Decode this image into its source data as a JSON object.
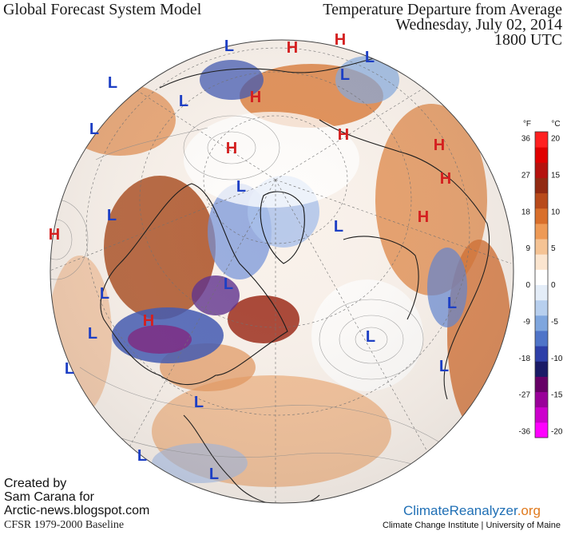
{
  "header": {
    "title_left": "Global Forecast System Model",
    "title_right": "Temperature Departure from Average",
    "date": "Wednesday, July 02, 2014",
    "time": "1800 UTC"
  },
  "credits": {
    "line1": "Created by",
    "line2": "Sam Carana for",
    "line3": "Arctic-news.blogspot.com",
    "baseline": "CFSR 1979-2000 Baseline"
  },
  "brand": {
    "name_part1": "ClimateReanalyzer",
    "name_part2": ".org",
    "institute": "Climate Change Institute | University of Maine"
  },
  "legend": {
    "unit_f": "°F",
    "unit_c": "°C",
    "ticks": [
      {
        "f": "36",
        "c": "20"
      },
      {
        "f": "27",
        "c": "15"
      },
      {
        "f": "18",
        "c": "10"
      },
      {
        "f": "9",
        "c": "5"
      },
      {
        "f": "0",
        "c": "0"
      },
      {
        "f": "-9",
        "c": "-5"
      },
      {
        "f": "-18",
        "c": "-10"
      },
      {
        "f": "-27",
        "c": "-15"
      },
      {
        "f": "-36",
        "c": "-20"
      }
    ],
    "colors": [
      "#ff00ff",
      "#cc00cc",
      "#990099",
      "#660066",
      "#1a1a66",
      "#2e3fa8",
      "#4f74c8",
      "#7fa6de",
      "#b7cfee",
      "#e4edf8",
      "#ffffff",
      "#fbe5cf",
      "#f5c394",
      "#ee9a56",
      "#d96f2b",
      "#b84a1a",
      "#922a12",
      "#b5120e",
      "#e00000",
      "#ff2020"
    ]
  },
  "colors": {
    "high": "#d42020",
    "low": "#1d3fc4",
    "warm": "#e08a4a",
    "cold": "#5a7fd0"
  },
  "pressure_systems": [
    {
      "label": "H",
      "kind": "high"
    },
    {
      "label": "H",
      "kind": "high"
    },
    {
      "label": "H",
      "kind": "high"
    },
    {
      "label": "H",
      "kind": "high"
    },
    {
      "label": "H",
      "kind": "high"
    },
    {
      "label": "H",
      "kind": "high"
    },
    {
      "label": "H",
      "kind": "high"
    },
    {
      "label": "H",
      "kind": "high"
    },
    {
      "label": "H",
      "kind": "high"
    },
    {
      "label": "H",
      "kind": "high"
    },
    {
      "label": "L",
      "kind": "low"
    },
    {
      "label": "L",
      "kind": "low"
    },
    {
      "label": "L",
      "kind": "low"
    },
    {
      "label": "L",
      "kind": "low"
    },
    {
      "label": "L",
      "kind": "low"
    },
    {
      "label": "L",
      "kind": "low"
    },
    {
      "label": "L",
      "kind": "low"
    },
    {
      "label": "L",
      "kind": "low"
    },
    {
      "label": "L",
      "kind": "low"
    },
    {
      "label": "L",
      "kind": "low"
    },
    {
      "label": "L",
      "kind": "low"
    },
    {
      "label": "L",
      "kind": "low"
    },
    {
      "label": "L",
      "kind": "low"
    },
    {
      "label": "L",
      "kind": "low"
    },
    {
      "label": "L",
      "kind": "low"
    },
    {
      "label": "L",
      "kind": "low"
    },
    {
      "label": "L",
      "kind": "low"
    },
    {
      "label": "L",
      "kind": "low"
    },
    {
      "label": "L",
      "kind": "low"
    }
  ]
}
